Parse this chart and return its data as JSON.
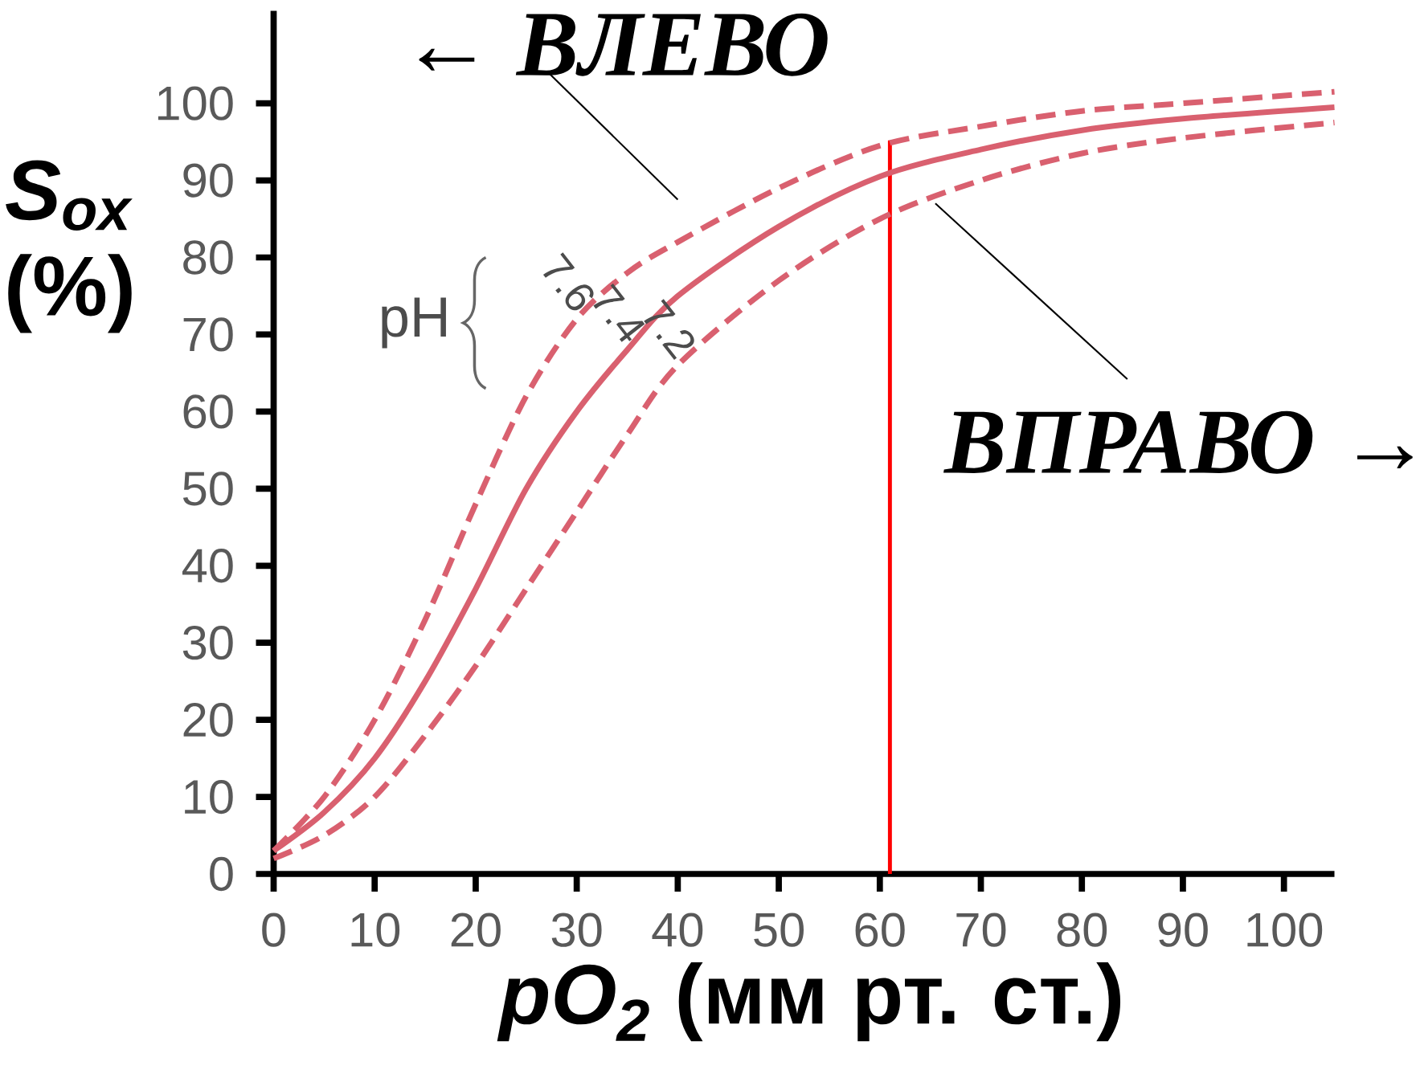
{
  "chart_data": {
    "type": "line",
    "xlabel": "*pO$_{2}$* (мм рт. ст.)",
    "ylabel": "*S$_{ox}$* (%)",
    "legend_title": "pH",
    "x": [
      0,
      5,
      10,
      15,
      20,
      25,
      30,
      35,
      40,
      50,
      60,
      70,
      80,
      90,
      105
    ],
    "series": [
      {
        "name": "7.6",
        "color": "#d9606f",
        "line_style": "dashed",
        "values": [
          3,
          10,
          20,
          33,
          48,
          62,
          72,
          78,
          82,
          89,
          94.5,
          97,
          99,
          100,
          101.5
        ]
      },
      {
        "name": "7.4",
        "color": "#d9606f",
        "line_style": "solid",
        "values": [
          3,
          8,
          15,
          25,
          37,
          50,
          60,
          68,
          75,
          84,
          90.5,
          94,
          96.5,
          98,
          99.5
        ]
      },
      {
        "name": "7.2",
        "color": "#d9606f",
        "line_style": "dashed",
        "values": [
          2,
          5,
          10,
          18,
          27,
          37,
          47,
          57,
          66,
          77,
          85,
          90,
          93.5,
          95.5,
          97.5
        ]
      }
    ],
    "xlim": [
      0,
      105
    ],
    "ylim": [
      0,
      112
    ],
    "xticks": [
      0,
      10,
      20,
      30,
      40,
      50,
      60,
      70,
      80,
      90,
      100
    ],
    "yticks": [
      0,
      10,
      20,
      30,
      40,
      50,
      60,
      70,
      80,
      90,
      100
    ],
    "ref_lines": [
      {
        "axis": "x",
        "value": 61,
        "color": "#ff0000"
      }
    ],
    "annotations": [
      "← ВЛЕВО",
      "ВПРАВО →"
    ],
    "grid": false,
    "legend": false
  }
}
